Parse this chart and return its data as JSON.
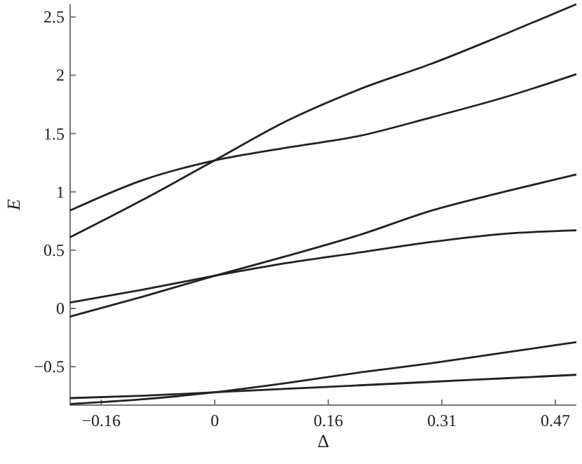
{
  "chart_data": {
    "type": "line",
    "xlabel": "Δ",
    "ylabel": "E",
    "x": [
      -0.2,
      -0.1,
      0,
      0.1,
      0.2,
      0.3,
      0.4,
      0.5
    ],
    "series": [
      {
        "color": "#222222",
        "values": [
          0.61,
          0.93,
          1.27,
          1.61,
          1.88,
          2.1,
          2.35,
          2.61
        ]
      },
      {
        "color": "#222222",
        "values": [
          0.84,
          1.1,
          1.27,
          1.38,
          1.48,
          1.64,
          1.81,
          2.01
        ]
      },
      {
        "color": "#222222",
        "values": [
          -0.07,
          0.1,
          0.28,
          0.45,
          0.63,
          0.84,
          1.0,
          1.15
        ]
      },
      {
        "color": "#222222",
        "values": [
          0.05,
          0.16,
          0.28,
          0.39,
          0.48,
          0.57,
          0.64,
          0.67
        ]
      },
      {
        "color": "#222222",
        "values": [
          -0.82,
          -0.78,
          -0.72,
          -0.64,
          -0.55,
          -0.47,
          -0.38,
          -0.29
        ]
      },
      {
        "color": "#222222",
        "values": [
          -0.77,
          -0.75,
          -0.72,
          -0.69,
          -0.66,
          -0.63,
          -0.6,
          -0.57
        ]
      }
    ],
    "xlim": [
      -0.2,
      0.5
    ],
    "ylim": [
      -0.83,
      2.61
    ],
    "xticks": [
      {
        "value": -0.157,
        "label": "−0.16"
      },
      0,
      {
        "value": 0.157,
        "label": "0.16"
      },
      {
        "value": 0.314,
        "label": "0.31"
      },
      {
        "value": 0.471,
        "label": "0.47"
      }
    ],
    "yticks": [
      {
        "value": -0.5,
        "label": "−0.5"
      },
      0,
      0.5,
      1,
      1.5,
      2,
      2.5
    ],
    "grid": false,
    "marker": "none",
    "line_style": "solid"
  }
}
